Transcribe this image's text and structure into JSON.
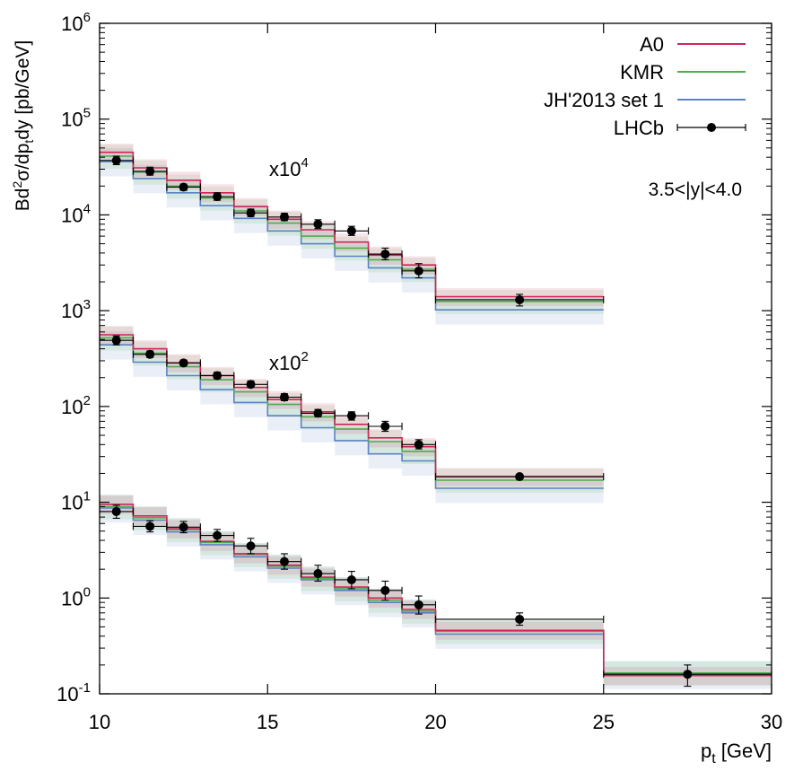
{
  "chart_data": {
    "type": "step-histogram-with-points",
    "title": "",
    "xlabel": "p",
    "xlabel_sub": "t",
    "xlabel_unit": " [GeV]",
    "ylabel_parts": [
      "Bd",
      "2",
      "σ/dp",
      "t",
      "dy [pb/GeV]"
    ],
    "xlim": [
      10,
      30
    ],
    "ylim": [
      0.1,
      1000000
    ],
    "yscale": "log",
    "x_ticks": [
      10,
      15,
      20,
      25,
      30
    ],
    "x_tick_labels": [
      "10",
      "15",
      "20",
      "25",
      "30"
    ],
    "y_ticks": [
      {
        "value": 0.1,
        "base": "10",
        "exp": "-1"
      },
      {
        "value": 1,
        "base": "10",
        "exp": "0"
      },
      {
        "value": 10,
        "base": "10",
        "exp": "1"
      },
      {
        "value": 100,
        "base": "10",
        "exp": "2"
      },
      {
        "value": 1000,
        "base": "10",
        "exp": "3"
      },
      {
        "value": 10000,
        "base": "10",
        "exp": "4"
      },
      {
        "value": 100000,
        "base": "10",
        "exp": "5"
      },
      {
        "value": 1000000,
        "base": "10",
        "exp": "6"
      }
    ],
    "rapidity_label": "3.5<|y|<4.0",
    "legend": [
      {
        "name": "A0",
        "color": "#d0245a",
        "kind": "line"
      },
      {
        "name": "KMR",
        "color": "#4cae4c",
        "kind": "line"
      },
      {
        "name": "JH'2013 set 1",
        "color": "#5b82c4",
        "kind": "line"
      },
      {
        "name": "LHCb",
        "color": "#000000",
        "kind": "point"
      }
    ],
    "bin_edges": [
      10,
      11,
      12,
      13,
      14,
      15,
      16,
      17,
      18,
      19,
      20,
      25,
      30
    ],
    "groups": [
      {
        "name": "scaled-1",
        "scale_base": "x10",
        "scale_exp": "0",
        "show_scale_label": false,
        "series": [
          {
            "name": "A0",
            "values": [
              9.5,
              7.2,
              5.3,
              3.9,
              2.9,
              2.2,
              1.65,
              1.3,
              1.0,
              0.76,
              0.46,
              0.155
            ]
          },
          {
            "name": "KMR",
            "values": [
              9.0,
              6.9,
              5.2,
              3.8,
              2.85,
              2.15,
              1.6,
              1.25,
              0.95,
              0.73,
              0.45,
              0.165
            ]
          },
          {
            "name": "JH'2013 set 1",
            "values": [
              8.7,
              6.5,
              4.9,
              3.6,
              2.7,
              2.05,
              1.55,
              1.2,
              0.9,
              0.7,
              0.42,
              0.16
            ]
          }
        ],
        "points": {
          "x": [
            10.5,
            11.5,
            12.5,
            13.5,
            14.5,
            15.5,
            16.5,
            17.5,
            18.5,
            19.5,
            22.5,
            27.5
          ],
          "y": [
            8.0,
            5.6,
            5.5,
            4.5,
            3.5,
            2.4,
            1.8,
            1.55,
            1.2,
            0.85,
            0.6,
            0.16
          ],
          "err_lo": [
            6.8,
            4.9,
            4.8,
            3.9,
            2.9,
            2.0,
            1.5,
            1.25,
            0.95,
            0.68,
            0.52,
            0.12
          ],
          "err_hi": [
            9.3,
            6.4,
            6.3,
            5.2,
            4.2,
            2.9,
            2.2,
            1.9,
            1.5,
            1.05,
            0.7,
            0.2
          ]
        }
      },
      {
        "name": "scaled-100",
        "scale_base": "x10",
        "scale_exp": "2",
        "show_scale_label": true,
        "series": [
          {
            "name": "A0",
            "values": [
              560,
              400,
              285,
              210,
              158,
              118,
              88,
              65,
              47,
              38,
              18.5
            ]
          },
          {
            "name": "KMR",
            "values": [
              520,
              360,
              260,
              190,
              142,
              105,
              78,
              58,
              43,
              34,
              17
            ]
          },
          {
            "name": "JH'2013 set 1",
            "values": [
              440,
              290,
              210,
              150,
              110,
              80,
              60,
              44,
              32,
              27,
              14
            ]
          }
        ],
        "points": {
          "x": [
            10.5,
            11.5,
            12.5,
            13.5,
            14.5,
            15.5,
            16.5,
            17.5,
            18.5,
            19.5,
            22.5
          ],
          "y": [
            490,
            350,
            285,
            210,
            170,
            125,
            85,
            80,
            62,
            40,
            18.5
          ],
          "err_lo": [
            440,
            325,
            265,
            195,
            158,
            115,
            78,
            72,
            55,
            36,
            17.5
          ],
          "err_hi": [
            545,
            380,
            305,
            228,
            185,
            136,
            93,
            88,
            70,
            45,
            19.5
          ]
        }
      },
      {
        "name": "scaled-10000",
        "scale_base": "x10",
        "scale_exp": "4",
        "show_scale_label": true,
        "series": [
          {
            "name": "A0",
            "values": [
              45000,
              31000,
              23000,
              17000,
              12200,
              9000,
              7000,
              5200,
              3800,
              3000,
              1400
            ]
          },
          {
            "name": "KMR",
            "values": [
              41000,
              28000,
              20000,
              15000,
              11000,
              8200,
              6000,
              4500,
              3400,
              2700,
              1250
            ]
          },
          {
            "name": "JH'2013 set 1",
            "values": [
              36000,
              24000,
              17000,
              12500,
              9200,
              6800,
              5000,
              3700,
              2800,
              2200,
              1020
            ]
          }
        ],
        "points": {
          "x": [
            10.5,
            11.5,
            12.5,
            13.5,
            14.5,
            15.5,
            16.5,
            17.5,
            18.5,
            19.5,
            22.5
          ],
          "y": [
            37000,
            28500,
            19500,
            15500,
            10500,
            9500,
            8000,
            6800,
            3900,
            2600,
            1300
          ],
          "err_lo": [
            33500,
            26000,
            18000,
            14200,
            9600,
            8700,
            7200,
            6100,
            3400,
            2200,
            1120
          ],
          "err_hi": [
            41000,
            31500,
            21000,
            17000,
            11500,
            10400,
            8900,
            7600,
            4500,
            3100,
            1480
          ]
        }
      }
    ]
  }
}
